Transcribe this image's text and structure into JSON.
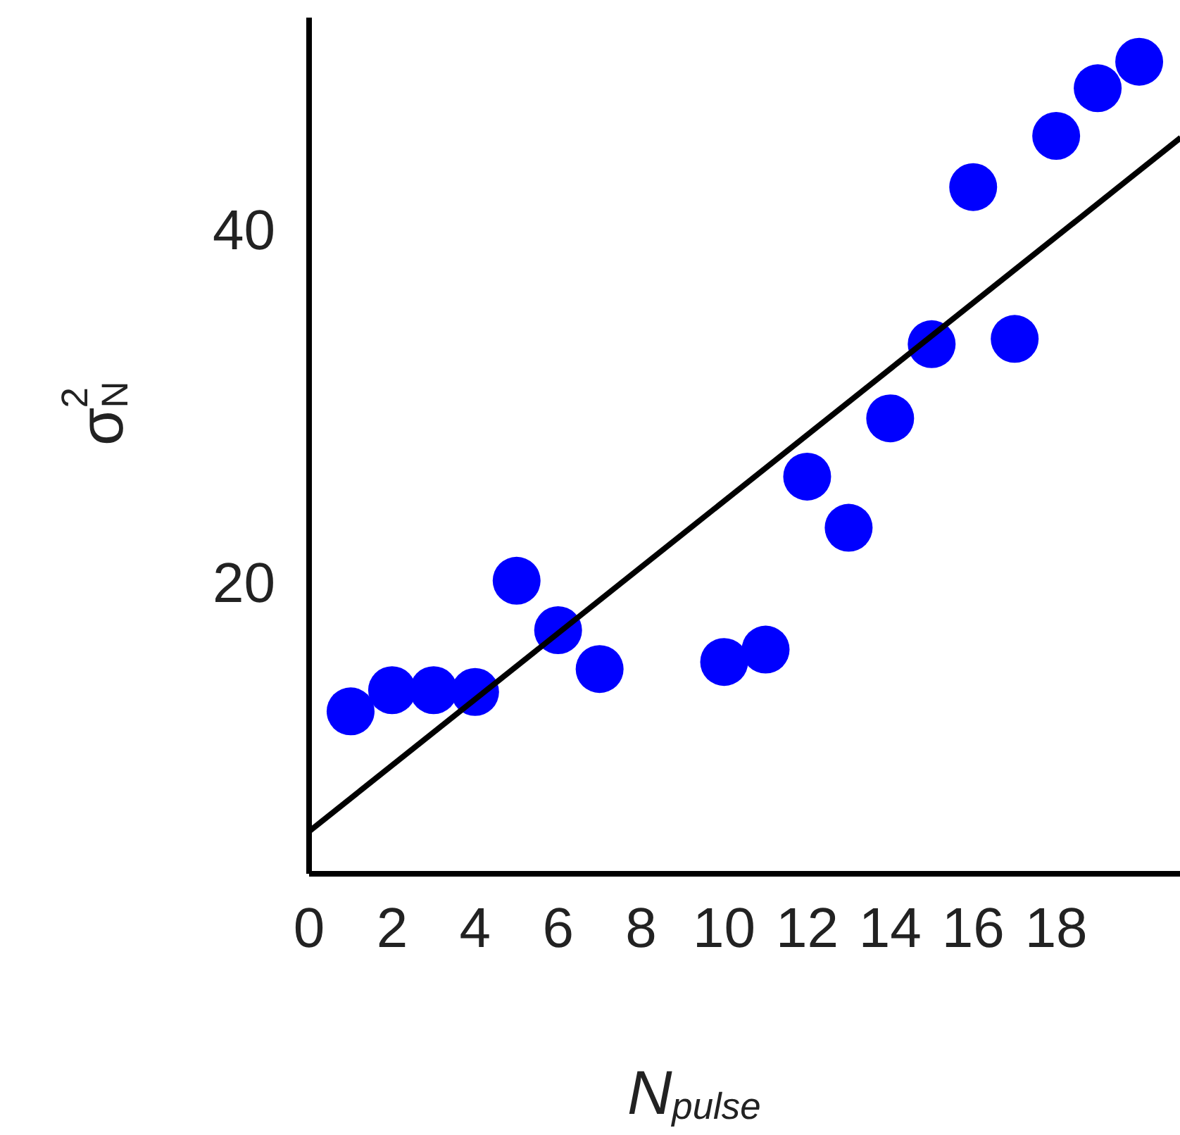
{
  "chart_data": {
    "type": "scatter",
    "xlabel": "N$_{pulse}$",
    "ylabel": "σ$_{N}$$^{2}$",
    "xlim": [
      0,
      21
    ],
    "ylim": [
      3.5,
      52
    ],
    "xticks": [
      0,
      2,
      4,
      6,
      8,
      10,
      12,
      14,
      16,
      18
    ],
    "yticks": [
      20,
      40
    ],
    "grid": false,
    "series": [
      {
        "color": "#0000ff",
        "marker": "circle",
        "x": [
          1,
          2,
          3,
          4,
          5,
          6,
          7,
          10,
          11,
          12,
          13,
          14,
          15,
          16,
          17,
          18,
          19,
          20
        ],
        "values": [
          12.7,
          13.9,
          13.9,
          13.8,
          20.1,
          17.3,
          15.1,
          15.5,
          16.2,
          26.0,
          23.1,
          29.3,
          33.5,
          42.4,
          33.8,
          45.3,
          48.0,
          49.5
        ]
      },
      {
        "type": "line",
        "color": "#000000",
        "line_style": "solid",
        "x": [
          0,
          21
        ],
        "values": [
          5.9,
          45.2
        ]
      }
    ]
  }
}
